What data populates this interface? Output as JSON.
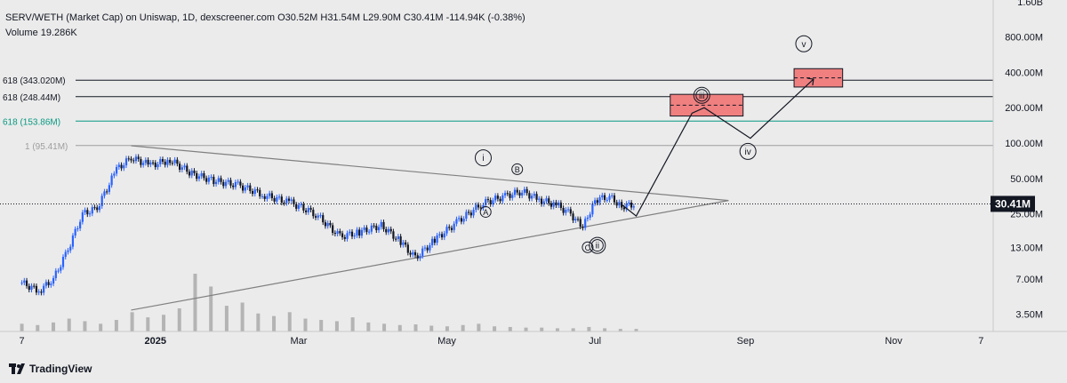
{
  "header": {
    "line1": "SERV/WETH (Market Cap) on Uniswap, 1D, dexscreener.com  O30.52M  H31.54M  L29.90M  C30.41M  -114.94K (-0.38%)",
    "line2": "Volume  19.286K"
  },
  "footer": {
    "brand": "TradingView",
    "logo_icon": "tradingview-logo-icon"
  },
  "colors": {
    "background": "#ebebeb",
    "candle_up": "#2962ff",
    "candle_down": "#131722",
    "volume": "#b4b4b4",
    "fib_level": "#131722",
    "fib_green": "#089981",
    "target_box": "#f08080",
    "trendline": "#808080",
    "wave_path": "#131722"
  },
  "chart_data": {
    "type": "candlestick",
    "symbol": "SERV/WETH (Market Cap)",
    "exchange": "Uniswap",
    "timeframe": "1D",
    "yscale": "log",
    "ylim": [
      2.5,
      1650
    ],
    "xlim": [
      "2024-10-29",
      "2025-12-12"
    ],
    "ohlc": {
      "open": "30.52M",
      "high": "31.54M",
      "low": "29.90M",
      "close": "30.41M",
      "change": "-114.94K (-0.38%)"
    },
    "volume_last": "19.286K",
    "current_price_label": "30.41M",
    "current_price": 30.41,
    "close_series": [
      {
        "date": "2024-11-07",
        "close": 6.5
      },
      {
        "date": "2024-11-14",
        "close": 5.5
      },
      {
        "date": "2024-11-20",
        "close": 7.0
      },
      {
        "date": "2024-11-26",
        "close": 12.5
      },
      {
        "date": "2024-12-02",
        "close": 25.0
      },
      {
        "date": "2024-12-08",
        "close": 28.0
      },
      {
        "date": "2024-12-16",
        "close": 60.0
      },
      {
        "date": "2024-12-22",
        "close": 75.0
      },
      {
        "date": "2024-12-30",
        "close": 65.0
      },
      {
        "date": "2025-01-07",
        "close": 72.0
      },
      {
        "date": "2025-01-16",
        "close": 55.0
      },
      {
        "date": "2025-01-25",
        "close": 48.0
      },
      {
        "date": "2025-02-04",
        "close": 44.0
      },
      {
        "date": "2025-02-15",
        "close": 36.0
      },
      {
        "date": "2025-02-26",
        "close": 31.0
      },
      {
        "date": "2025-03-08",
        "close": 25.0
      },
      {
        "date": "2025-03-18",
        "close": 16.0
      },
      {
        "date": "2025-03-26",
        "close": 17.5
      },
      {
        "date": "2025-04-04",
        "close": 20.0
      },
      {
        "date": "2025-04-12",
        "close": 14.5
      },
      {
        "date": "2025-04-18",
        "close": 10.5
      },
      {
        "date": "2025-04-26",
        "close": 15.0
      },
      {
        "date": "2025-05-06",
        "close": 22.0
      },
      {
        "date": "2025-05-16",
        "close": 31.0
      },
      {
        "date": "2025-05-26",
        "close": 36.0
      },
      {
        "date": "2025-06-01",
        "close": 39.0
      },
      {
        "date": "2025-06-08",
        "close": 33.0
      },
      {
        "date": "2025-06-15",
        "close": 30.0
      },
      {
        "date": "2025-06-21",
        "close": 25.0
      },
      {
        "date": "2025-06-26",
        "close": 19.0
      },
      {
        "date": "2025-07-01",
        "close": 33.0
      },
      {
        "date": "2025-07-07",
        "close": 35.0
      },
      {
        "date": "2025-07-12",
        "close": 29.0
      },
      {
        "date": "2025-07-18",
        "close": 30.41
      }
    ],
    "volume_bars": [
      12,
      10,
      14,
      20,
      16,
      12,
      18,
      30,
      22,
      26,
      36,
      90,
      70,
      40,
      45,
      28,
      24,
      30,
      20,
      18,
      16,
      22,
      14,
      12,
      10,
      11,
      9,
      8,
      10,
      12,
      8,
      7,
      6,
      6,
      5,
      5,
      7,
      5,
      4,
      4
    ],
    "yticks": [
      {
        "label": "1.60B",
        "value": 1600
      },
      {
        "label": "800.00M",
        "value": 800
      },
      {
        "label": "400.00M",
        "value": 400
      },
      {
        "label": "200.00M",
        "value": 200
      },
      {
        "label": "100.00M",
        "value": 100
      },
      {
        "label": "50.00M",
        "value": 50
      },
      {
        "label": "25.00M",
        "value": 25
      },
      {
        "label": "13.00M",
        "value": 13
      },
      {
        "label": "7.00M",
        "value": 7
      },
      {
        "label": "3.50M",
        "value": 3.5
      }
    ],
    "xticks": [
      {
        "label": "7",
        "date": "2024-11-07"
      },
      {
        "label": "2025",
        "date": "2025-01-01"
      },
      {
        "label": "Mar",
        "date": "2025-03-01"
      },
      {
        "label": "May",
        "date": "2025-05-01"
      },
      {
        "label": "Jul",
        "date": "2025-07-01"
      },
      {
        "label": "Sep",
        "date": "2025-09-01"
      },
      {
        "label": "Nov",
        "date": "2025-11-01"
      },
      {
        "label": "7",
        "date": "2025-12-07"
      }
    ],
    "fib_levels": [
      {
        "label": "618 (343.020M)",
        "value": 343.02,
        "color": "#131722"
      },
      {
        "label": "618 (248.44M)",
        "value": 248.44,
        "color": "#131722"
      },
      {
        "label": "618 (153.86M)",
        "value": 153.86,
        "color": "#089981"
      },
      {
        "label": "1 (95.41M)",
        "value": 95.41,
        "color": "#9e9e9e"
      }
    ],
    "triangle": {
      "upper": [
        {
          "date": "2024-12-22",
          "value": 95
        },
        {
          "date": "2025-08-25",
          "value": 32.5
        }
      ],
      "lower": [
        {
          "date": "2024-12-22",
          "value": 3.8
        },
        {
          "date": "2025-08-25",
          "value": 32.5
        }
      ]
    },
    "target_boxes": [
      {
        "from": "2025-08-01",
        "to": "2025-08-31",
        "low": 170,
        "high": 260
      },
      {
        "from": "2025-09-21",
        "to": "2025-10-11",
        "low": 300,
        "high": 430
      }
    ],
    "wave_path": [
      {
        "date": "2025-07-12",
        "value": 30
      },
      {
        "date": "2025-07-18",
        "value": 24
      },
      {
        "date": "2025-08-10",
        "value": 180
      },
      {
        "date": "2025-08-15",
        "value": 200
      },
      {
        "date": "2025-09-03",
        "value": 110
      },
      {
        "date": "2025-09-29",
        "value": 350
      }
    ],
    "wave_labels": [
      {
        "label": "i",
        "date": "2025-05-16",
        "value": 75,
        "style": "circle"
      },
      {
        "label": "ii",
        "date": "2025-07-02",
        "value": 13.5,
        "style": "double-circle"
      },
      {
        "label": "iii",
        "date": "2025-08-14",
        "value": 255,
        "style": "double-circle"
      },
      {
        "label": "iv",
        "date": "2025-09-02",
        "value": 85,
        "style": "circle"
      },
      {
        "label": "v",
        "date": "2025-09-25",
        "value": 700,
        "style": "circle"
      },
      {
        "label": "A",
        "date": "2025-05-17",
        "value": 26,
        "style": "small-circle"
      },
      {
        "label": "B",
        "date": "2025-05-30",
        "value": 60,
        "style": "small-circle"
      },
      {
        "label": "C",
        "date": "2025-06-28",
        "value": 13,
        "style": "small-circle"
      }
    ]
  }
}
